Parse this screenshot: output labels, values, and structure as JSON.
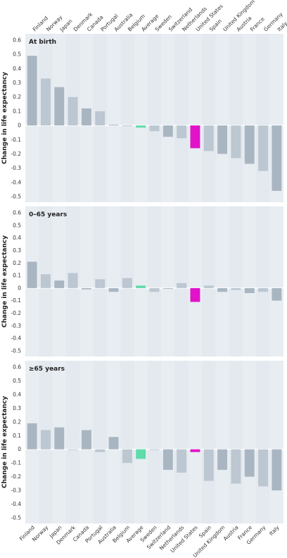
{
  "chart_data": {
    "type": "bar",
    "categories": [
      "Finland",
      "Norway",
      "Japan",
      "Denmark",
      "Canada",
      "Portugal",
      "Australia",
      "Belgium",
      "Average",
      "Sweden",
      "Switzerland",
      "Netherlands",
      "United States",
      "Spain",
      "United Kingdom",
      "Austria",
      "France",
      "Germany",
      "Italy"
    ],
    "ylabel": "Change in life expectancy",
    "ylim": [
      -0.5,
      0.6
    ],
    "yticks": [
      "0.6",
      "0.5",
      "0.4",
      "0.3",
      "0.2",
      "0.1",
      "0",
      "-0.1",
      "-0.2",
      "-0.3",
      "-0.4",
      "-0.5"
    ],
    "colors": {
      "bar": "#a9b6c2",
      "bar_light": "#bcc7d1",
      "average": "#5fdca8",
      "united_states": "#e013c8",
      "band": "#e8edf2",
      "panel_bg": "#e3e9ef",
      "zero_line": "#ffffff"
    },
    "label_colors": {
      "Average": "#4ccf99",
      "United States": "#cc1fba"
    },
    "panels": [
      {
        "title": "At birth",
        "categories": [
          "Finland",
          "Norway",
          "Japan",
          "Denmark",
          "Canada",
          "Portugal",
          "Australia",
          "Belgium",
          "Average",
          "Sweden",
          "Switzerland",
          "Netherlands",
          "United States",
          "Spain",
          "United Kingdom",
          "Austria",
          "France",
          "Germany",
          "Italy"
        ],
        "values": [
          0.49,
          0.33,
          0.27,
          0.2,
          0.12,
          0.1,
          0.005,
          -0.005,
          -0.015,
          -0.04,
          -0.08,
          -0.09,
          -0.16,
          -0.18,
          -0.2,
          -0.23,
          -0.27,
          -0.32,
          -0.46
        ]
      },
      {
        "title": "0–65 years",
        "categories": [
          "Finland",
          "Norway",
          "Japan",
          "Denmark",
          "Canada",
          "Portugal",
          "Australia",
          "Belgium",
          "Average",
          "Sweden",
          "Switzerland",
          "Netherlands",
          "United States",
          "Spain",
          "United Kingdom",
          "Austria",
          "France",
          "Germany",
          "Italy"
        ],
        "values": [
          0.21,
          0.11,
          0.06,
          0.12,
          -0.01,
          0.07,
          -0.03,
          0.08,
          0.02,
          -0.03,
          -0.005,
          0.04,
          -0.11,
          0.02,
          -0.03,
          -0.015,
          -0.04,
          -0.03,
          -0.1
        ]
      },
      {
        "title": "≥65 years",
        "categories": [
          "Finland",
          "Norway",
          "Japan",
          "Denmark",
          "Canada",
          "Portugal",
          "Australia",
          "Belgium",
          "Average",
          "Sweden",
          "Switzerland",
          "Netherlands",
          "United States",
          "Spain",
          "United Kingdom",
          "Austria",
          "France",
          "Germany",
          "Italy"
        ],
        "values": [
          0.19,
          0.14,
          0.16,
          -0.005,
          0.14,
          -0.02,
          0.09,
          -0.1,
          -0.07,
          -0.005,
          -0.15,
          -0.17,
          -0.02,
          -0.23,
          -0.15,
          -0.25,
          -0.2,
          -0.27,
          -0.3
        ]
      }
    ]
  }
}
